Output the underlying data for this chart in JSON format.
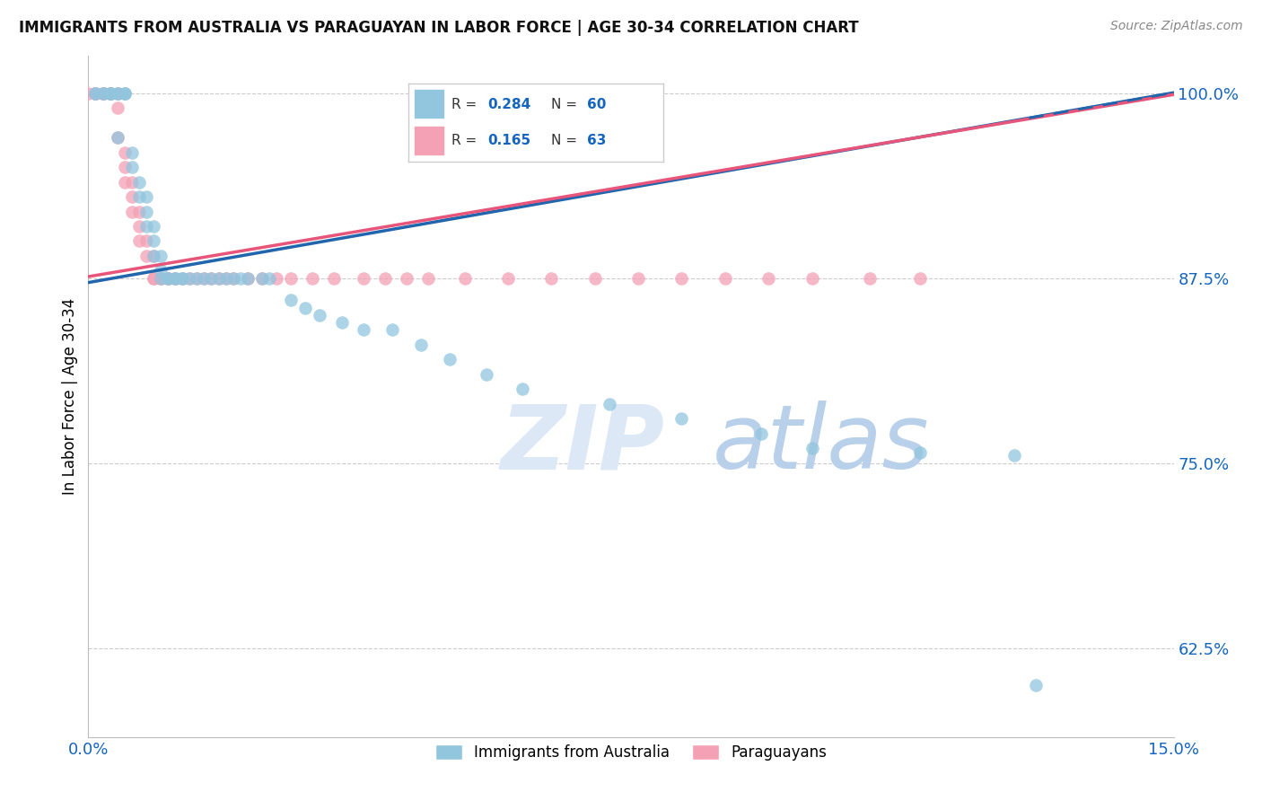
{
  "title": "IMMIGRANTS FROM AUSTRALIA VS PARAGUAYAN IN LABOR FORCE | AGE 30-34 CORRELATION CHART",
  "source": "Source: ZipAtlas.com",
  "ylabel": "In Labor Force | Age 30-34",
  "xlim": [
    0.0,
    0.15
  ],
  "ylim": [
    0.565,
    1.025
  ],
  "yticks": [
    0.625,
    0.75,
    0.875,
    1.0
  ],
  "ytick_labels": [
    "62.5%",
    "75.0%",
    "87.5%",
    "100.0%"
  ],
  "xticks": [
    0.0,
    0.025,
    0.05,
    0.075,
    0.1,
    0.125,
    0.15
  ],
  "xtick_labels": [
    "0.0%",
    "",
    "",
    "",
    "",
    "",
    "15.0%"
  ],
  "legend_labels": [
    "Immigrants from Australia",
    "Paraguayans"
  ],
  "R_australia": 0.284,
  "N_australia": 60,
  "R_paraguayan": 0.165,
  "N_paraguayan": 63,
  "blue_color": "#92c5de",
  "pink_color": "#f4a0b5",
  "blue_line_color": "#2166ac",
  "pink_line_color": "#e8557a",
  "blue_x": [
    0.001,
    0.001,
    0.002,
    0.002,
    0.003,
    0.003,
    0.003,
    0.004,
    0.004,
    0.004,
    0.005,
    0.005,
    0.005,
    0.006,
    0.006,
    0.007,
    0.007,
    0.008,
    0.008,
    0.008,
    0.009,
    0.009,
    0.009,
    0.01,
    0.01,
    0.01,
    0.011,
    0.011,
    0.012,
    0.012,
    0.013,
    0.013,
    0.014,
    0.015,
    0.016,
    0.017,
    0.018,
    0.019,
    0.02,
    0.021,
    0.022,
    0.024,
    0.025,
    0.028,
    0.03,
    0.032,
    0.035,
    0.038,
    0.042,
    0.046,
    0.05,
    0.055,
    0.06,
    0.072,
    0.082,
    0.093,
    0.1,
    0.115,
    0.128,
    0.131
  ],
  "blue_y": [
    1.0,
    1.0,
    1.0,
    1.0,
    1.0,
    1.0,
    1.0,
    1.0,
    1.0,
    0.97,
    1.0,
    1.0,
    1.0,
    0.96,
    0.95,
    0.94,
    0.93,
    0.93,
    0.92,
    0.91,
    0.91,
    0.9,
    0.89,
    0.89,
    0.88,
    0.875,
    0.875,
    0.875,
    0.875,
    0.875,
    0.875,
    0.875,
    0.875,
    0.875,
    0.875,
    0.875,
    0.875,
    0.875,
    0.875,
    0.875,
    0.875,
    0.875,
    0.875,
    0.86,
    0.855,
    0.85,
    0.845,
    0.84,
    0.84,
    0.83,
    0.82,
    0.81,
    0.8,
    0.79,
    0.78,
    0.77,
    0.76,
    0.757,
    0.755,
    0.6
  ],
  "pink_x": [
    0.0,
    0.001,
    0.001,
    0.001,
    0.002,
    0.002,
    0.002,
    0.003,
    0.003,
    0.003,
    0.003,
    0.004,
    0.004,
    0.004,
    0.005,
    0.005,
    0.005,
    0.006,
    0.006,
    0.006,
    0.007,
    0.007,
    0.007,
    0.008,
    0.008,
    0.009,
    0.009,
    0.009,
    0.01,
    0.01,
    0.011,
    0.011,
    0.012,
    0.012,
    0.013,
    0.014,
    0.015,
    0.016,
    0.017,
    0.018,
    0.019,
    0.02,
    0.022,
    0.024,
    0.026,
    0.028,
    0.031,
    0.034,
    0.038,
    0.041,
    0.044,
    0.047,
    0.052,
    0.058,
    0.064,
    0.07,
    0.076,
    0.082,
    0.088,
    0.094,
    0.1,
    0.108,
    0.115
  ],
  "pink_y": [
    1.0,
    1.0,
    1.0,
    1.0,
    1.0,
    1.0,
    1.0,
    1.0,
    1.0,
    1.0,
    1.0,
    1.0,
    0.99,
    0.97,
    0.96,
    0.95,
    0.94,
    0.94,
    0.93,
    0.92,
    0.92,
    0.91,
    0.9,
    0.9,
    0.89,
    0.89,
    0.875,
    0.875,
    0.875,
    0.875,
    0.875,
    0.875,
    0.875,
    0.875,
    0.875,
    0.875,
    0.875,
    0.875,
    0.875,
    0.875,
    0.875,
    0.875,
    0.875,
    0.875,
    0.875,
    0.875,
    0.875,
    0.875,
    0.875,
    0.875,
    0.875,
    0.875,
    0.875,
    0.875,
    0.875,
    0.875,
    0.875,
    0.875,
    0.875,
    0.875,
    0.875,
    0.875,
    0.875
  ]
}
